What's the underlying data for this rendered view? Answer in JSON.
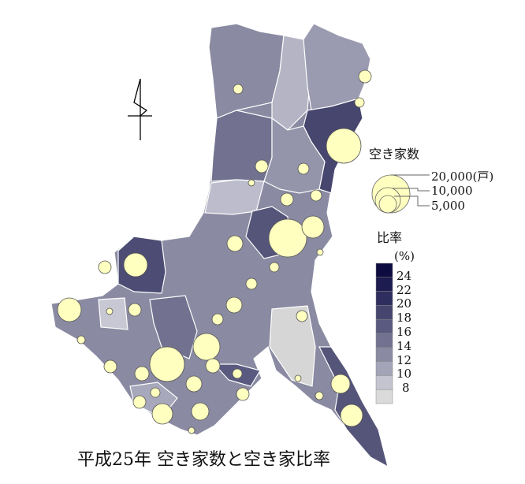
{
  "title": "平成25年 空き家数と空き家比率",
  "legend_size": {
    "title": "空き家数",
    "unit": "(戸)",
    "entries": [
      "20,000",
      "10,000",
      "5,000"
    ],
    "circle_color": "#ffffc0"
  },
  "legend_ratio": {
    "title": "比率",
    "unit": "(%)",
    "ticks": [
      "24",
      "22",
      "20",
      "18",
      "16",
      "14",
      "12",
      "10",
      "8"
    ],
    "colors": [
      "#0c0c40",
      "#1c1c50",
      "#2e2e5e",
      "#45456e",
      "#5a5a80",
      "#727290",
      "#8a8aa2",
      "#a4a4b8",
      "#c4c4d0",
      "#dadada"
    ]
  },
  "icons": {
    "north_arrow": "north-arrow-icon"
  }
}
